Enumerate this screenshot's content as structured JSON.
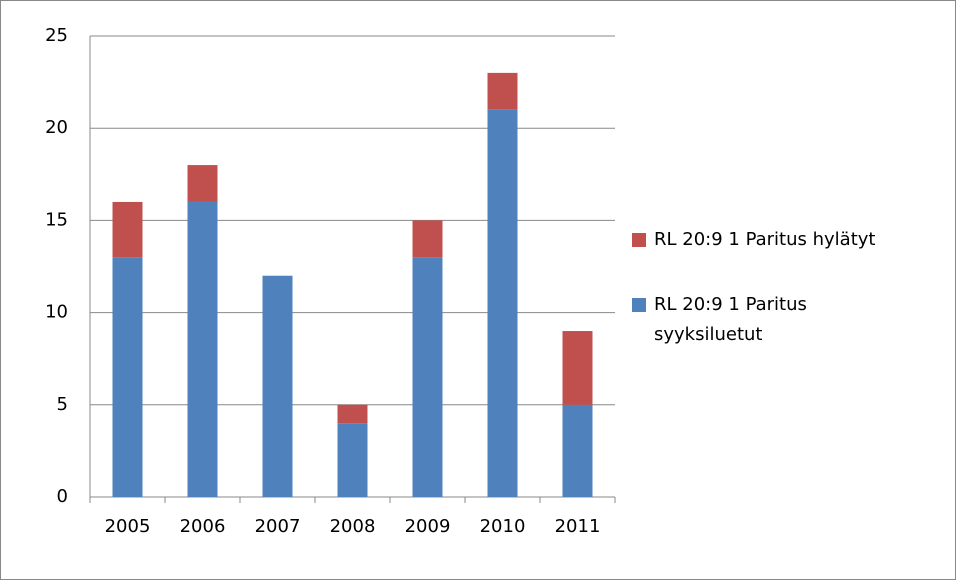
{
  "chart_data": {
    "type": "stacked_bar",
    "categories": [
      "2005",
      "2006",
      "2007",
      "2008",
      "2009",
      "2010",
      "2011"
    ],
    "series": [
      {
        "name": "RL 20:9 1 Paritus syyksiluetut",
        "color": "#4f81bd",
        "values": [
          13,
          16,
          12,
          4,
          13,
          21,
          5
        ]
      },
      {
        "name": "RL 20:9 1 Paritus hylätyt",
        "color": "#c0504d",
        "values": [
          3,
          2,
          0,
          1,
          2,
          2,
          4
        ]
      }
    ],
    "ylim": [
      0,
      25
    ],
    "yticks": [
      0,
      5,
      10,
      15,
      20,
      25
    ],
    "grid": true,
    "legend": "right"
  }
}
